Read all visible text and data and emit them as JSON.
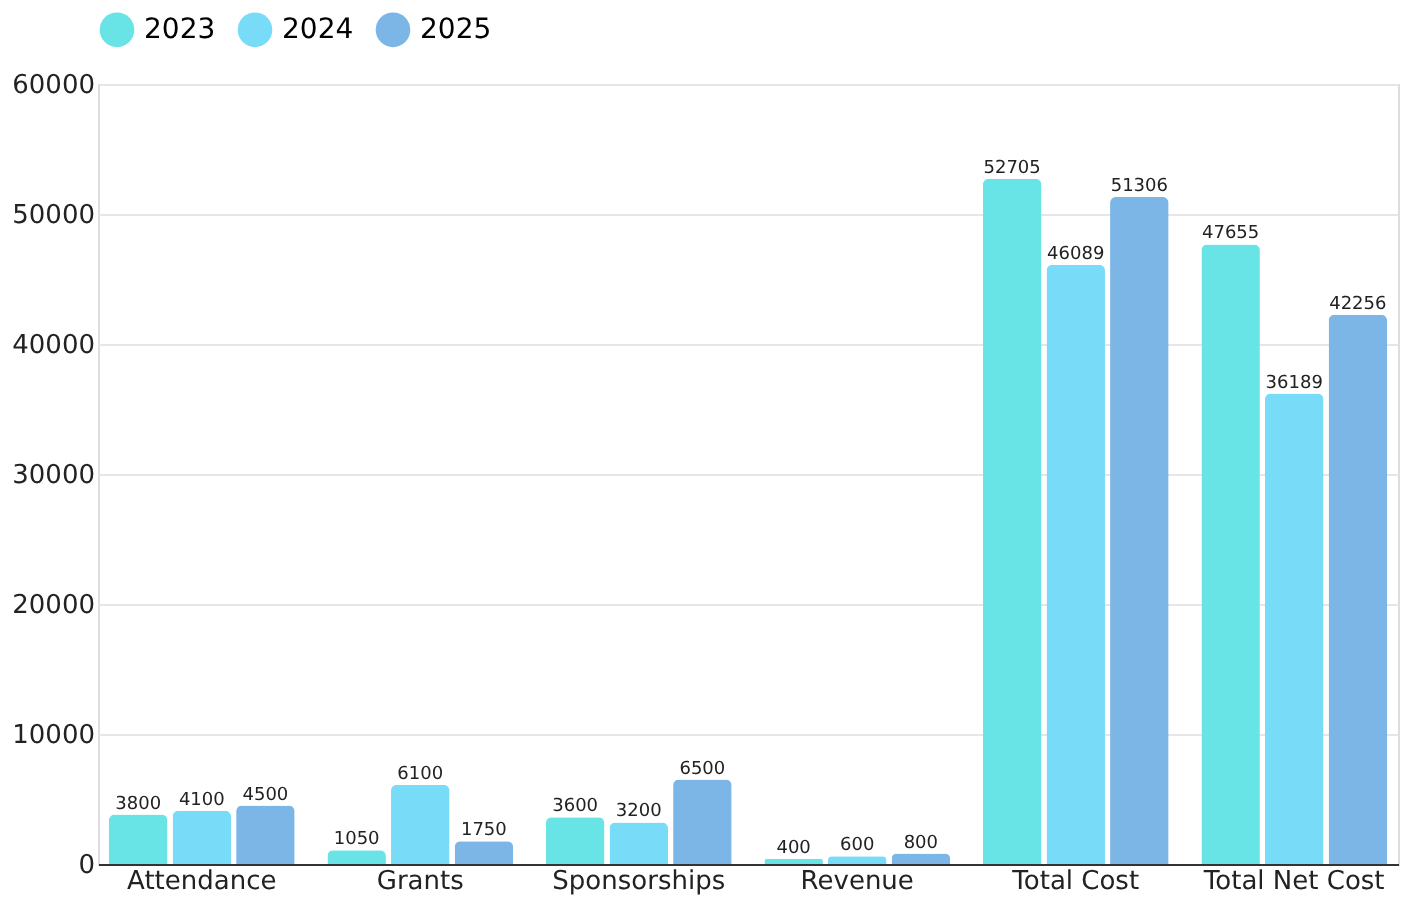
{
  "chart_data": {
    "type": "bar",
    "categories": [
      "Attendance",
      "Grants",
      "Sponsorships",
      "Revenue",
      "Total Cost",
      "Total Net Cost"
    ],
    "series": [
      {
        "name": "2023",
        "color": "#68e3e6",
        "values": [
          3800,
          1050,
          3600,
          400,
          52705,
          47655
        ]
      },
      {
        "name": "2024",
        "color": "#78dcf9",
        "values": [
          4100,
          6100,
          3200,
          600,
          46089,
          36189
        ]
      },
      {
        "name": "2025",
        "color": "#7bb6e6",
        "values": [
          4500,
          1750,
          6500,
          800,
          51306,
          42256
        ]
      }
    ],
    "ylim": [
      0,
      60000
    ],
    "yticks": [
      0,
      10000,
      20000,
      30000,
      40000,
      50000,
      60000
    ],
    "grid": "y",
    "legend": "top",
    "data_labels": true
  }
}
